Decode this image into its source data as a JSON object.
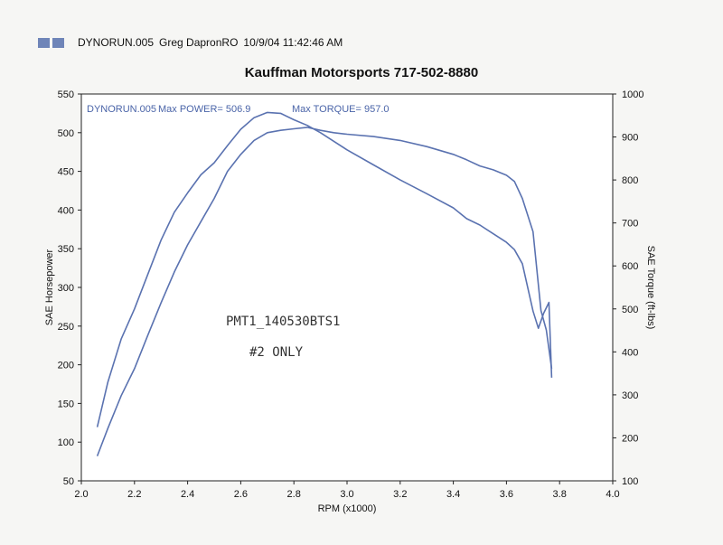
{
  "header": {
    "file": "DYNORUN.005",
    "operator": "Greg DapronRO",
    "datetime": "10/9/04 11:42:46 AM"
  },
  "colors": {
    "curve": "#5a72b0",
    "accent": "#6f85b8"
  },
  "chart_data": {
    "type": "line",
    "title": "Kauffman Motorsports 717-502-8880",
    "xlabel": "RPM (x1000)",
    "ylabel_left": "SAE Horsepower",
    "ylabel_right": "SAE Torque (ft-lbs)",
    "xlim": [
      2.0,
      4.0
    ],
    "ylim_left": [
      50,
      550
    ],
    "ylim_right": [
      100,
      1000
    ],
    "x_ticks": [
      "2.0",
      "2.2",
      "2.4",
      "2.6",
      "2.8",
      "3.0",
      "3.2",
      "3.4",
      "3.6",
      "3.8",
      "4.0"
    ],
    "y_ticks_left": [
      "550",
      "500",
      "450",
      "400",
      "350",
      "300",
      "250",
      "200",
      "150",
      "100",
      "50"
    ],
    "y_ticks_right": [
      "1000",
      "900",
      "800",
      "700",
      "600",
      "500",
      "400",
      "300",
      "200",
      "100"
    ],
    "grid": false,
    "info": {
      "run": "DYNORUN.005",
      "max_power": "Max POWER= 506.9",
      "max_torque": "Max TORQUE= 957.0"
    },
    "annotations": [
      "PMT1_140530BTS1",
      "#2 ONLY"
    ],
    "series": [
      {
        "axis": "left",
        "x": [
          2.06,
          2.1,
          2.15,
          2.2,
          2.25,
          2.3,
          2.35,
          2.4,
          2.45,
          2.5,
          2.55,
          2.6,
          2.65,
          2.7,
          2.75,
          2.8,
          2.85,
          2.9,
          2.95,
          3.0,
          3.1,
          3.2,
          3.3,
          3.4,
          3.45,
          3.5,
          3.55,
          3.6,
          3.63,
          3.66,
          3.7,
          3.73,
          3.75,
          3.77
        ],
        "values": [
          82,
          118,
          160,
          195,
          238,
          280,
          320,
          355,
          385,
          415,
          450,
          472,
          490,
          500,
          503,
          505,
          506.9,
          503,
          500,
          498,
          495,
          490,
          482,
          472,
          465,
          457,
          452,
          445,
          437,
          415,
          372,
          270,
          245,
          195
        ]
      },
      {
        "axis": "right",
        "x": [
          2.06,
          2.1,
          2.15,
          2.2,
          2.25,
          2.3,
          2.35,
          2.4,
          2.45,
          2.5,
          2.55,
          2.6,
          2.65,
          2.7,
          2.75,
          2.8,
          2.85,
          2.9,
          2.95,
          3.0,
          3.1,
          3.2,
          3.3,
          3.4,
          3.45,
          3.5,
          3.55,
          3.6,
          3.63,
          3.66,
          3.7,
          3.72,
          3.74,
          3.76,
          3.77
        ],
        "values": [
          225,
          330,
          430,
          500,
          580,
          660,
          725,
          770,
          812,
          840,
          880,
          918,
          945,
          957,
          955,
          940,
          927,
          910,
          890,
          870,
          835,
          800,
          768,
          735,
          710,
          695,
          675,
          655,
          638,
          605,
          495,
          455,
          490,
          515,
          340
        ]
      }
    ]
  }
}
